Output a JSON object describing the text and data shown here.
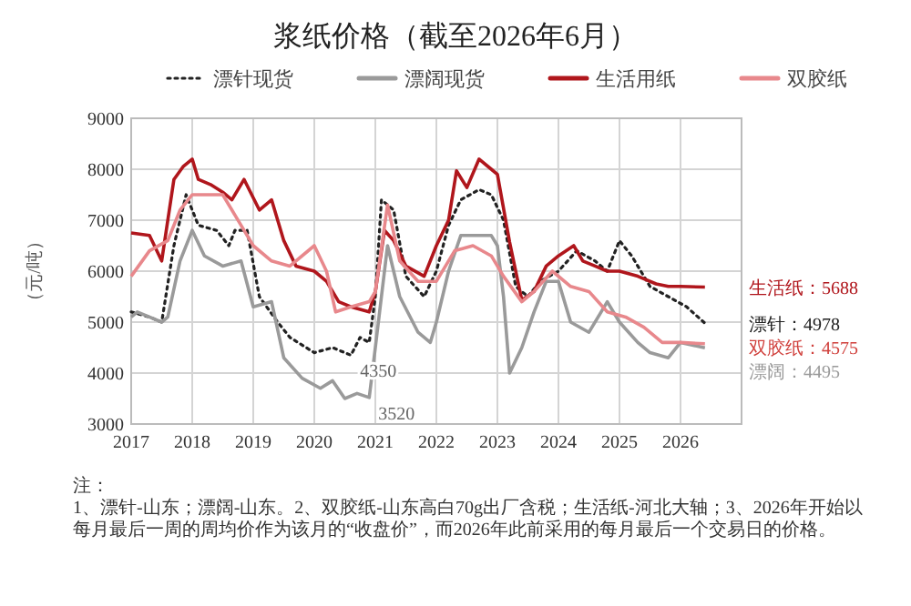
{
  "chart_data": {
    "type": "line",
    "title": "浆纸价格（截至2026年6月）",
    "ylabel": "（元/吨）",
    "xlim": [
      2017,
      2027
    ],
    "xticks": [
      2017,
      2018,
      2019,
      2020,
      2021,
      2022,
      2023,
      2024,
      2025,
      2026
    ],
    "ylim": [
      3000,
      9000
    ],
    "yticks": [
      3000,
      4000,
      5000,
      6000,
      7000,
      8000,
      9000
    ],
    "grid": true,
    "legend": "top",
    "marker": "none",
    "series": [
      {
        "name": "漂针现货",
        "color": "#222222",
        "line_style": "dotted",
        "x": [
          2017.0,
          2017.3,
          2017.5,
          2017.7,
          2017.9,
          2018.1,
          2018.4,
          2018.6,
          2018.7,
          2018.9,
          2019.1,
          2019.4,
          2019.6,
          2020.0,
          2020.3,
          2020.6,
          2020.75,
          2020.9,
          2021.0,
          2021.1,
          2021.3,
          2021.5,
          2021.8,
          2022.0,
          2022.2,
          2022.4,
          2022.7,
          2022.9,
          2023.1,
          2023.3,
          2023.5,
          2023.7,
          2024.0,
          2024.3,
          2024.6,
          2024.8,
          2025.0,
          2025.2,
          2025.5,
          2025.8,
          2026.1,
          2026.4
        ],
        "values": [
          5200,
          5100,
          5000,
          6500,
          7500,
          6900,
          6800,
          6500,
          6800,
          6800,
          5500,
          5000,
          4700,
          4400,
          4500,
          4350,
          4700,
          4600,
          5500,
          7400,
          7200,
          5900,
          5500,
          6000,
          6900,
          7400,
          7600,
          7500,
          7000,
          5700,
          5500,
          5800,
          6000,
          6400,
          6200,
          6000,
          6600,
          6300,
          5700,
          5500,
          5300,
          4978
        ]
      },
      {
        "name": "漂阔现货",
        "color": "#9a9a9a",
        "line_style": "solid",
        "x": [
          2017.0,
          2017.1,
          2017.3,
          2017.5,
          2017.6,
          2017.8,
          2018.0,
          2018.2,
          2018.5,
          2018.8,
          2019.0,
          2019.3,
          2019.5,
          2019.8,
          2020.1,
          2020.3,
          2020.5,
          2020.7,
          2020.9,
          2021.0,
          2021.2,
          2021.4,
          2021.7,
          2021.9,
          2022.0,
          2022.2,
          2022.4,
          2022.7,
          2022.9,
          2023.0,
          2023.1,
          2023.2,
          2023.4,
          2023.6,
          2023.8,
          2024.0,
          2024.2,
          2024.5,
          2024.8,
          2025.0,
          2025.3,
          2025.5,
          2025.8,
          2026.0,
          2026.4
        ],
        "values": [
          5100,
          5200,
          5100,
          5000,
          5100,
          6200,
          6800,
          6300,
          6100,
          6200,
          5300,
          5400,
          4300,
          3900,
          3700,
          3850,
          3500,
          3600,
          3520,
          4500,
          6500,
          5500,
          4800,
          4600,
          5000,
          6000,
          6700,
          6700,
          6700,
          6500,
          5500,
          4000,
          4500,
          5200,
          5800,
          5800,
          5000,
          4800,
          5400,
          5000,
          4600,
          4400,
          4300,
          4600,
          4495
        ]
      },
      {
        "name": "生活用纸",
        "color": "#b0161c",
        "line_style": "solid",
        "x": [
          2017.0,
          2017.3,
          2017.5,
          2017.7,
          2017.85,
          2018.0,
          2018.1,
          2018.3,
          2018.5,
          2018.65,
          2018.85,
          2019.1,
          2019.3,
          2019.5,
          2019.7,
          2020.0,
          2020.2,
          2020.4,
          2020.6,
          2020.9,
          2021.0,
          2021.15,
          2021.3,
          2021.5,
          2021.8,
          2022.0,
          2022.2,
          2022.33,
          2022.5,
          2022.7,
          2022.9,
          2023.0,
          2023.2,
          2023.4,
          2023.6,
          2023.8,
          2024.0,
          2024.25,
          2024.4,
          2024.6,
          2024.8,
          2025.0,
          2025.3,
          2025.6,
          2025.8,
          2026.0,
          2026.4
        ],
        "values": [
          6750,
          6700,
          6200,
          7800,
          8050,
          8200,
          7800,
          7700,
          7550,
          7400,
          7800,
          7200,
          7400,
          6600,
          6100,
          6000,
          5800,
          5400,
          5300,
          5200,
          5600,
          6800,
          6600,
          6100,
          5900,
          6500,
          7000,
          7970,
          7640,
          8200,
          8000,
          7900,
          6570,
          5430,
          5600,
          6100,
          6300,
          6500,
          6200,
          6100,
          6000,
          6000,
          5900,
          5750,
          5700,
          5700,
          5688
        ]
      },
      {
        "name": "双胶纸",
        "color": "#e8888c",
        "line_style": "solid",
        "x": [
          2017.0,
          2017.3,
          2017.6,
          2017.8,
          2018.0,
          2018.5,
          2018.7,
          2019.0,
          2019.3,
          2019.6,
          2020.0,
          2020.2,
          2020.35,
          2020.6,
          2020.9,
          2021.0,
          2021.2,
          2021.4,
          2021.7,
          2022.0,
          2022.3,
          2022.6,
          2022.9,
          2023.1,
          2023.4,
          2023.6,
          2023.9,
          2024.2,
          2024.5,
          2024.8,
          2025.1,
          2025.4,
          2025.7,
          2026.0,
          2026.4
        ],
        "values": [
          5900,
          6400,
          6600,
          7200,
          7500,
          7500,
          7100,
          6500,
          6200,
          6100,
          6500,
          6000,
          5200,
          5300,
          5400,
          5600,
          7300,
          6200,
          5800,
          5800,
          6400,
          6500,
          6300,
          5900,
          5400,
          5600,
          6000,
          5700,
          5600,
          5200,
          5100,
          4900,
          4600,
          4600,
          4575
        ]
      }
    ],
    "annotations": [
      {
        "text": "4350",
        "x": 2020.6,
        "y": 4350
      },
      {
        "text": "3520",
        "x": 2020.9,
        "y": 3520
      },
      {
        "text": "生活纸：5688",
        "x": 2026.4,
        "y": 5688
      },
      {
        "text": "漂针：4978",
        "x": 2026.4,
        "y": 4978
      },
      {
        "text": "双胶纸：4575",
        "x": 2026.4,
        "y": 4575
      },
      {
        "text": "漂阔：4495",
        "x": 2026.4,
        "y": 4495
      },
      "注：",
      "1、漂针-山东；漂阔-山东。2、双胶纸-山东高白70g出厂含税；生活纸-河北大轴；3、2026年开始以每月最后一周的周均价作为该月的“收盘价”，而2026年此前采用的每月最后一个交易日的价格。"
    ]
  }
}
